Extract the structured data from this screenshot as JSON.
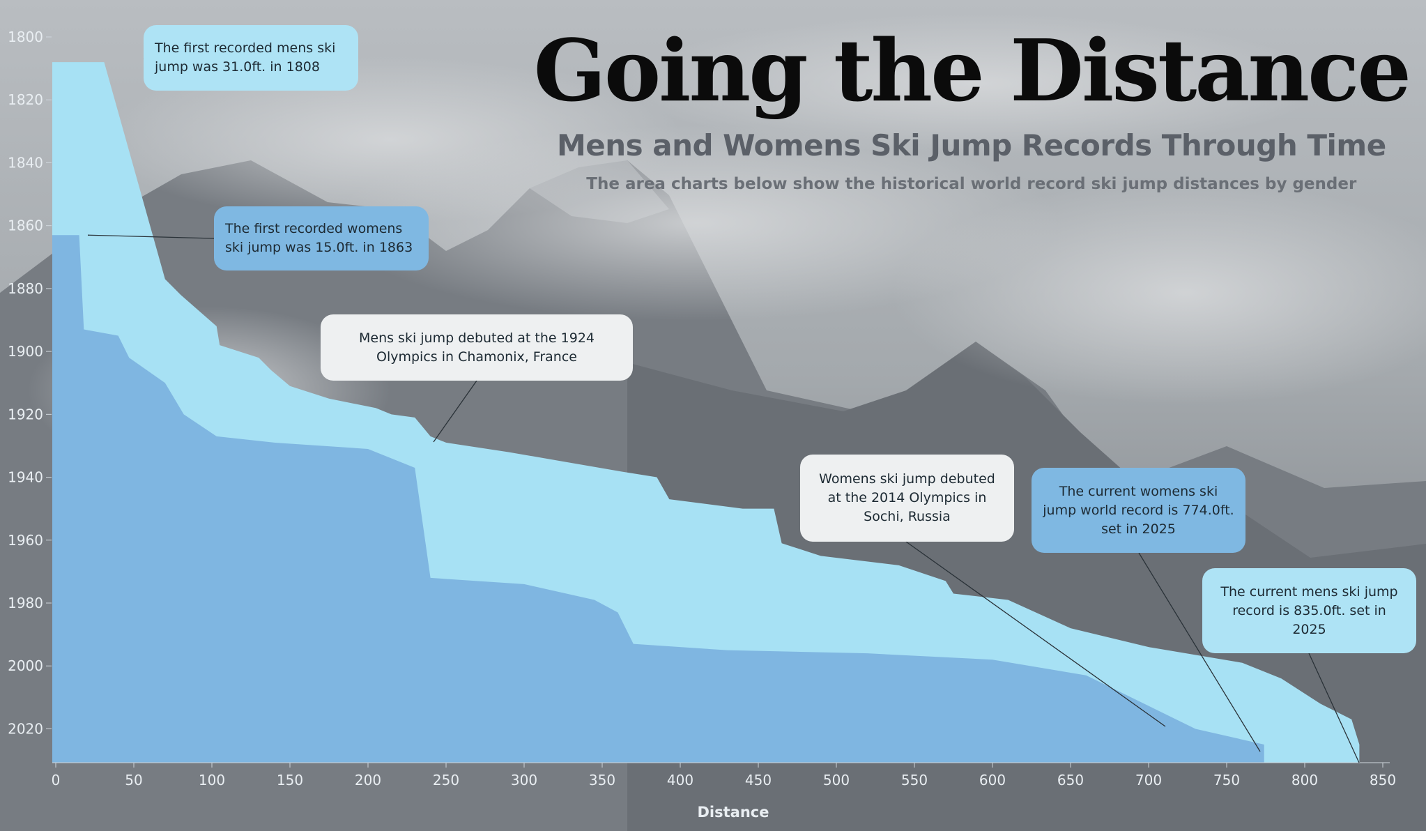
{
  "header": {
    "title": "Going the Distance",
    "subtitle": "Mens and Womens Ski Jump Records Through Time",
    "description": "The area charts below show the historical world record ski jump distances by gender"
  },
  "callouts": {
    "mens_first": "The first recorded mens ski jump was 31.0ft. in 1808",
    "womens_first": "The first recorded womens ski jump was 15.0ft. in 1863",
    "mens_olympics": "Mens ski jump debuted at the 1924 Olympics in Chamonix, France",
    "womens_olympics": "Womens ski jump debuted at the 2014 Olympics in Sochi, Russia",
    "womens_current": "The current womens ski jump world record is 774.0ft. set in 2025",
    "mens_current": "The current mens ski jump record is 835.0ft. set in 2025"
  },
  "colors": {
    "mens_area": "#a7e1f4",
    "womens_area": "#7fb6e1",
    "background": "#8f9499",
    "axis_text": "#e9eef2"
  },
  "chart_data": {
    "type": "area",
    "xlabel": "Distance",
    "ylabel": "",
    "xlim": [
      0,
      850
    ],
    "ylim": [
      1800,
      2025
    ],
    "x_ticks": [
      0,
      50,
      100,
      150,
      200,
      250,
      300,
      350,
      400,
      450,
      500,
      550,
      600,
      650,
      700,
      750,
      800,
      850
    ],
    "y_ticks": [
      1800,
      1820,
      1840,
      1860,
      1880,
      1900,
      1920,
      1940,
      1960,
      1980,
      2000,
      2020
    ],
    "y_reversed": true,
    "series": [
      {
        "points": [
          [
            31,
            1808
          ],
          [
            70,
            1877
          ],
          [
            80,
            1882
          ],
          [
            103,
            1892
          ],
          [
            105,
            1898
          ],
          [
            130,
            1902
          ],
          [
            138,
            1906
          ],
          [
            150,
            1911
          ],
          [
            175,
            1915
          ],
          [
            205,
            1918
          ],
          [
            215,
            1920
          ],
          [
            230,
            1921
          ],
          [
            240,
            1927
          ],
          [
            250,
            1929
          ],
          [
            290,
            1932
          ],
          [
            325,
            1935
          ],
          [
            360,
            1938
          ],
          [
            385,
            1940
          ],
          [
            393,
            1947
          ],
          [
            440,
            1950
          ],
          [
            460,
            1950
          ],
          [
            465,
            1961
          ],
          [
            490,
            1965
          ],
          [
            540,
            1968
          ],
          [
            570,
            1973
          ],
          [
            575,
            1977
          ],
          [
            610,
            1979
          ],
          [
            650,
            1988
          ],
          [
            700,
            1994
          ],
          [
            760,
            1999
          ],
          [
            785,
            2004
          ],
          [
            810,
            2012
          ],
          [
            830,
            2017
          ],
          [
            835,
            2025
          ]
        ]
      },
      {
        "points": [
          [
            15,
            1863
          ],
          [
            18,
            1893
          ],
          [
            40,
            1895
          ],
          [
            47,
            1902
          ],
          [
            70,
            1910
          ],
          [
            82,
            1920
          ],
          [
            103,
            1927
          ],
          [
            140,
            1929
          ],
          [
            200,
            1931
          ],
          [
            230,
            1937
          ],
          [
            240,
            1972
          ],
          [
            300,
            1974
          ],
          [
            345,
            1979
          ],
          [
            360,
            1983
          ],
          [
            370,
            1993
          ],
          [
            430,
            1995
          ],
          [
            520,
            1996
          ],
          [
            600,
            1998
          ],
          [
            660,
            2003
          ],
          [
            730,
            2020
          ],
          [
            774,
            2025
          ]
        ]
      }
    ]
  }
}
